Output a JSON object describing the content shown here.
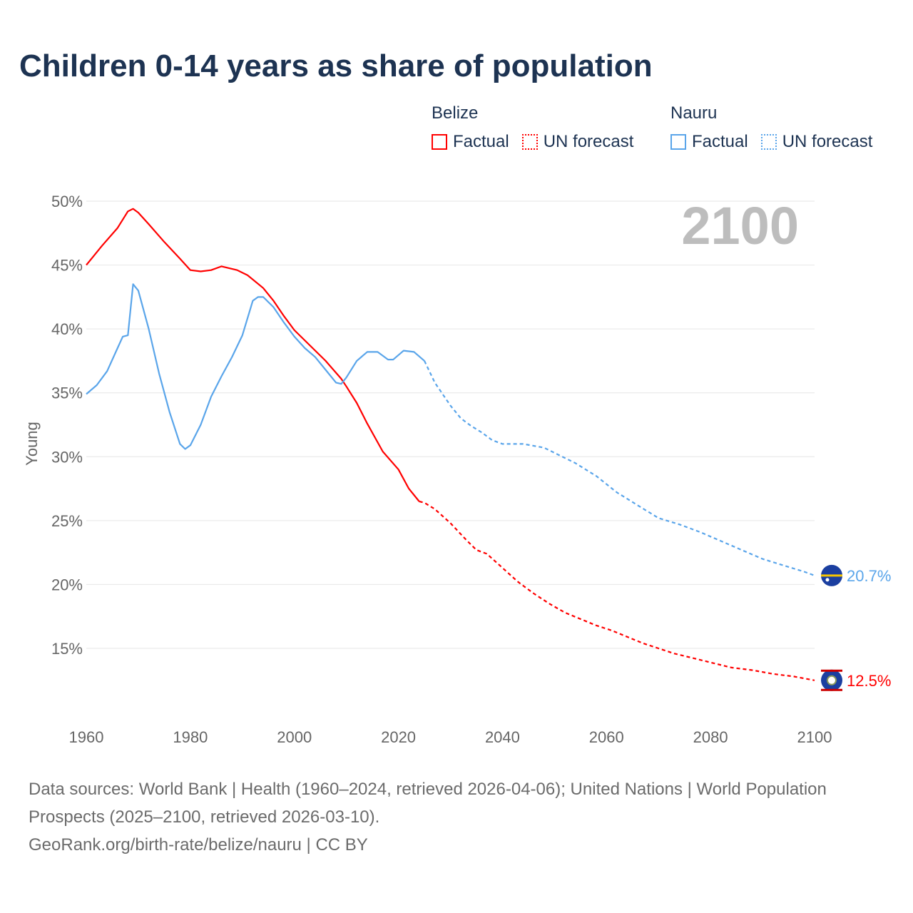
{
  "chart_data": {
    "type": "line",
    "title": "Children 0-14 years as share of population",
    "ylabel": "Young",
    "xlabel": "",
    "xlim": [
      1960,
      2100
    ],
    "ylim": [
      10,
      50
    ],
    "x_ticks": [
      "1960",
      "1980",
      "2000",
      "2020",
      "2040",
      "2060",
      "2080",
      "2100"
    ],
    "y_ticks": [
      "15%",
      "20%",
      "25%",
      "30%",
      "35%",
      "40%",
      "45%",
      "50%"
    ],
    "y_tick_values": [
      15,
      20,
      25,
      30,
      35,
      40,
      45,
      50
    ],
    "x_tick_values": [
      1960,
      1980,
      2000,
      2020,
      2040,
      2060,
      2080,
      2100
    ],
    "grid": true,
    "year_label": "2100",
    "legend": {
      "placement": "top-right",
      "groups": [
        {
          "name": "Belize",
          "factual": "Factual",
          "forecast": "UN forecast",
          "color": "#ff0000"
        },
        {
          "name": "Nauru",
          "factual": "Factual",
          "forecast": "UN forecast",
          "color": "#5aa5ea"
        }
      ]
    },
    "series": [
      {
        "name": "Belize",
        "color": "#ff0000",
        "end_label": "12.5%",
        "factual": {
          "x": [
            1960,
            1963,
            1966,
            1968,
            1969,
            1970,
            1972,
            1975,
            1978,
            1980,
            1982,
            1984,
            1986,
            1989,
            1991,
            1994,
            1996,
            1998,
            2000,
            2003,
            2006,
            2009,
            2010,
            2012,
            2014,
            2017,
            2020,
            2022,
            2024
          ],
          "y": [
            45.0,
            46.5,
            47.9,
            49.2,
            49.4,
            49.1,
            48.2,
            46.8,
            45.5,
            44.6,
            44.5,
            44.6,
            44.9,
            44.6,
            44.2,
            43.2,
            42.2,
            41.0,
            39.9,
            38.7,
            37.5,
            36.1,
            35.5,
            34.2,
            32.6,
            30.4,
            29.0,
            27.5,
            26.5
          ]
        },
        "forecast": {
          "x": [
            2024,
            2025,
            2027,
            2030,
            2033,
            2035,
            2037,
            2040,
            2043,
            2046,
            2049,
            2052,
            2055,
            2058,
            2061,
            2064,
            2067,
            2070,
            2073,
            2076,
            2080,
            2084,
            2088,
            2092,
            2096,
            2100
          ],
          "y": [
            26.5,
            26.4,
            25.9,
            24.8,
            23.5,
            22.7,
            22.4,
            21.3,
            20.2,
            19.3,
            18.5,
            17.8,
            17.3,
            16.8,
            16.4,
            15.9,
            15.4,
            15.0,
            14.6,
            14.3,
            13.9,
            13.5,
            13.3,
            13.0,
            12.8,
            12.5
          ]
        }
      },
      {
        "name": "Nauru",
        "color": "#5aa5ea",
        "end_label": "20.7%",
        "factual": {
          "x": [
            1960,
            1962,
            1964,
            1966,
            1967,
            1968,
            1969,
            1970,
            1972,
            1974,
            1976,
            1978,
            1979,
            1980,
            1982,
            1984,
            1986,
            1988,
            1990,
            1992,
            1993,
            1994,
            1996,
            1998,
            2000,
            2002,
            2004,
            2006,
            2008,
            2009,
            2010,
            2012,
            2014,
            2016,
            2018,
            2019,
            2021,
            2023,
            2025
          ],
          "y": [
            34.9,
            35.6,
            36.7,
            38.5,
            39.4,
            39.5,
            43.5,
            43.0,
            40.0,
            36.5,
            33.5,
            31.0,
            30.6,
            30.9,
            32.5,
            34.7,
            36.3,
            37.8,
            39.5,
            42.2,
            42.5,
            42.5,
            41.7,
            40.5,
            39.4,
            38.5,
            37.8,
            36.8,
            35.8,
            35.7,
            36.2,
            37.5,
            38.2,
            38.2,
            37.6,
            37.6,
            38.3,
            38.2,
            37.5
          ]
        },
        "forecast": {
          "x": [
            2025,
            2027,
            2030,
            2032,
            2034,
            2036,
            2038,
            2040,
            2044,
            2048,
            2050,
            2054,
            2058,
            2062,
            2066,
            2070,
            2074,
            2078,
            2082,
            2086,
            2090,
            2094,
            2098,
            2100
          ],
          "y": [
            37.5,
            35.8,
            34.0,
            33.0,
            32.4,
            31.9,
            31.3,
            31.0,
            31.0,
            30.7,
            30.3,
            29.5,
            28.5,
            27.2,
            26.2,
            25.2,
            24.7,
            24.1,
            23.4,
            22.7,
            22.0,
            21.5,
            21.0,
            20.7
          ]
        }
      }
    ]
  },
  "footer": {
    "line1": "Data sources: World Bank | Health (1960–2024, retrieved 2026-04-06); United Nations | World Population Prospects (2025–2100, retrieved 2026-03-10).",
    "line2": "GeoRank.org/birth-rate/belize/nauru | CC BY"
  }
}
